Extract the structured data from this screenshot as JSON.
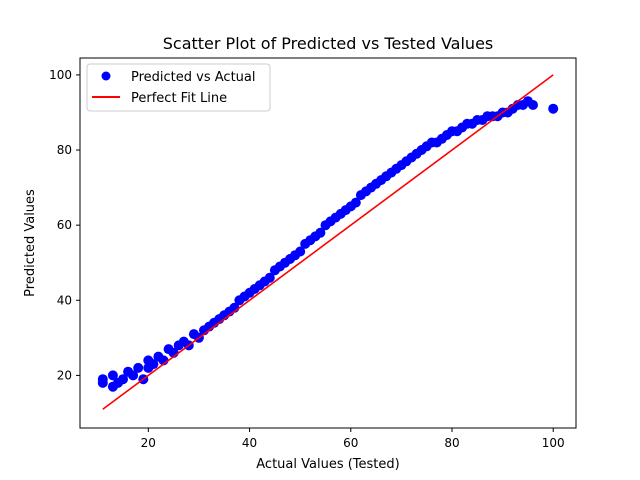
{
  "chart_data": {
    "type": "scatter",
    "title": "Scatter Plot of Predicted vs Tested Values",
    "xlabel": "Actual Values (Tested)",
    "ylabel": "Predicted Values",
    "xlim": [
      6.5,
      104.5
    ],
    "ylim": [
      6.0,
      104.5
    ],
    "xticks": [
      20,
      40,
      60,
      80,
      100
    ],
    "yticks": [
      20,
      40,
      60,
      80,
      100
    ],
    "xtick_labels": [
      "20",
      "40",
      "60",
      "80",
      "100"
    ],
    "ytick_labels": [
      "20",
      "40",
      "60",
      "80",
      "100"
    ],
    "grid": false,
    "legend_position": "top-left",
    "colors": {
      "scatter": "#0000ff",
      "line": "#ff0000"
    },
    "series": [
      {
        "name": "Predicted vs Actual",
        "kind": "scatter",
        "color": "#0000ff",
        "points": [
          [
            11,
            18
          ],
          [
            11,
            19
          ],
          [
            13,
            17
          ],
          [
            13,
            20
          ],
          [
            14,
            18
          ],
          [
            15,
            19
          ],
          [
            16,
            21
          ],
          [
            17,
            20
          ],
          [
            18,
            22
          ],
          [
            19,
            19
          ],
          [
            20,
            22
          ],
          [
            20,
            24
          ],
          [
            21,
            23
          ],
          [
            22,
            25
          ],
          [
            23,
            24
          ],
          [
            24,
            27
          ],
          [
            25,
            26
          ],
          [
            26,
            28
          ],
          [
            27,
            29
          ],
          [
            28,
            28
          ],
          [
            29,
            31
          ],
          [
            30,
            30
          ],
          [
            31,
            32
          ],
          [
            32,
            33
          ],
          [
            33,
            34
          ],
          [
            34,
            35
          ],
          [
            35,
            36
          ],
          [
            36,
            37
          ],
          [
            37,
            38
          ],
          [
            38,
            40
          ],
          [
            39,
            41
          ],
          [
            40,
            42
          ],
          [
            41,
            43
          ],
          [
            42,
            44
          ],
          [
            43,
            45
          ],
          [
            44,
            46
          ],
          [
            45,
            48
          ],
          [
            46,
            49
          ],
          [
            47,
            50
          ],
          [
            48,
            51
          ],
          [
            49,
            52
          ],
          [
            50,
            53
          ],
          [
            51,
            55
          ],
          [
            52,
            56
          ],
          [
            53,
            57
          ],
          [
            54,
            58
          ],
          [
            55,
            60
          ],
          [
            56,
            61
          ],
          [
            57,
            62
          ],
          [
            58,
            63
          ],
          [
            59,
            64
          ],
          [
            60,
            65
          ],
          [
            61,
            66
          ],
          [
            62,
            68
          ],
          [
            63,
            69
          ],
          [
            64,
            70
          ],
          [
            65,
            71
          ],
          [
            66,
            72
          ],
          [
            67,
            73
          ],
          [
            68,
            74
          ],
          [
            69,
            75
          ],
          [
            70,
            76
          ],
          [
            71,
            77
          ],
          [
            72,
            78
          ],
          [
            73,
            79
          ],
          [
            74,
            80
          ],
          [
            75,
            81
          ],
          [
            76,
            82
          ],
          [
            77,
            82
          ],
          [
            78,
            83
          ],
          [
            79,
            84
          ],
          [
            80,
            85
          ],
          [
            81,
            85
          ],
          [
            82,
            86
          ],
          [
            83,
            87
          ],
          [
            84,
            87
          ],
          [
            85,
            88
          ],
          [
            86,
            88
          ],
          [
            87,
            89
          ],
          [
            88,
            89
          ],
          [
            89,
            89
          ],
          [
            90,
            90
          ],
          [
            91,
            90
          ],
          [
            92,
            91
          ],
          [
            93,
            92
          ],
          [
            94,
            92
          ],
          [
            95,
            93
          ],
          [
            96,
            92
          ],
          [
            100,
            91
          ]
        ]
      },
      {
        "name": "Perfect Fit Line",
        "kind": "line",
        "color": "#ff0000",
        "points": [
          [
            11,
            11
          ],
          [
            100,
            100
          ]
        ]
      }
    ]
  }
}
